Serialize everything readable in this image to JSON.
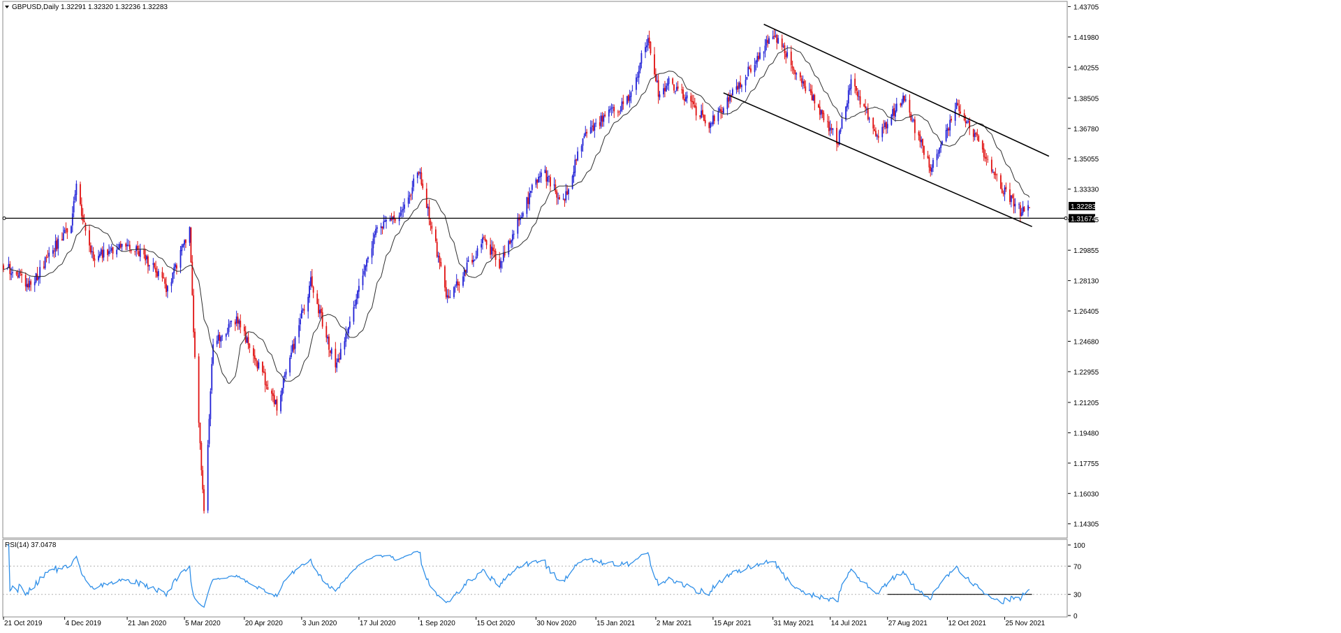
{
  "header": {
    "symbol_line": "GBPUSD,Daily  1.32291 1.32320 1.32236 1.32283"
  },
  "rsi_header": "RSI(14) 37.0478",
  "colors": {
    "bull": "#1f1fd6",
    "bear": "#e01010",
    "ma": "#303030",
    "rsi": "#2f8fe8",
    "line": "#000000",
    "price_label_bg": "#000000",
    "price_label_fg": "#ffffff"
  },
  "price_axis": {
    "ticks": [
      "1.43705",
      "1.41980",
      "1.40255",
      "1.38505",
      "1.36780",
      "1.35055",
      "1.33330",
      "1.31605",
      "1.29855",
      "1.28130",
      "1.26405",
      "1.24680",
      "1.22955",
      "1.21205",
      "1.19480",
      "1.17755",
      "1.16030",
      "1.14305"
    ],
    "current_price_label": "1.32283",
    "hline_label": "1.31674"
  },
  "rsi_axis": {
    "ticks": [
      "100",
      "70",
      "30",
      "0"
    ],
    "levels": [
      70,
      30
    ]
  },
  "time_axis": {
    "labels": [
      "21 Oct 2019",
      "4 Dec 2019",
      "21 Jan 2020",
      "5 Mar 2020",
      "20 Apr 2020",
      "3 Jun 2020",
      "17 Jul 2020",
      "1 Sep 2020",
      "15 Oct 2020",
      "30 Nov 2020",
      "15 Jan 2021",
      "2 Mar 2021",
      "15 Apr 2021",
      "31 May 2021",
      "14 Jul 2021",
      "27 Aug 2021",
      "12 Oct 2021",
      "25 Nov 2021"
    ]
  },
  "chart_data": {
    "type": "candlestick",
    "title": "GBPUSD,Daily",
    "last_bar": {
      "open": 1.32291,
      "high": 1.3232,
      "low": 1.32236,
      "close": 1.32283
    },
    "ylim": [
      1.135,
      1.44
    ],
    "x_range": [
      "2019-10-18",
      "2021-12-14"
    ],
    "key_points": [
      {
        "date": "2019-10-18",
        "close": 1.29
      },
      {
        "date": "2019-11-08",
        "close": 1.279
      },
      {
        "date": "2019-12-09",
        "close": 1.315
      },
      {
        "date": "2019-12-13",
        "close": 1.335
      },
      {
        "date": "2019-12-24",
        "close": 1.295
      },
      {
        "date": "2020-01-21",
        "close": 1.302
      },
      {
        "date": "2020-02-10",
        "close": 1.29
      },
      {
        "date": "2020-02-21",
        "close": 1.276
      },
      {
        "date": "2020-03-09",
        "close": 1.31
      },
      {
        "date": "2020-03-12",
        "close": 1.25
      },
      {
        "date": "2020-03-20",
        "close": 1.15
      },
      {
        "date": "2020-03-27",
        "close": 1.245
      },
      {
        "date": "2020-04-14",
        "close": 1.26
      },
      {
        "date": "2020-05-15",
        "close": 1.21
      },
      {
        "date": "2020-06-10",
        "close": 1.28
      },
      {
        "date": "2020-06-29",
        "close": 1.232
      },
      {
        "date": "2020-07-31",
        "close": 1.31
      },
      {
        "date": "2020-08-20",
        "close": 1.32
      },
      {
        "date": "2020-09-01",
        "close": 1.345
      },
      {
        "date": "2020-09-23",
        "close": 1.27
      },
      {
        "date": "2020-10-21",
        "close": 1.305
      },
      {
        "date": "2020-11-02",
        "close": 1.29
      },
      {
        "date": "2020-12-04",
        "close": 1.345
      },
      {
        "date": "2020-12-21",
        "close": 1.325
      },
      {
        "date": "2021-01-06",
        "close": 1.365
      },
      {
        "date": "2021-02-10",
        "close": 1.385
      },
      {
        "date": "2021-02-24",
        "close": 1.42
      },
      {
        "date": "2021-03-05",
        "close": 1.385
      },
      {
        "date": "2021-03-12",
        "close": 1.395
      },
      {
        "date": "2021-04-12",
        "close": 1.37
      },
      {
        "date": "2021-05-07",
        "close": 1.395
      },
      {
        "date": "2021-06-01",
        "close": 1.422
      },
      {
        "date": "2021-07-20",
        "close": 1.36
      },
      {
        "date": "2021-07-30",
        "close": 1.395
      },
      {
        "date": "2021-08-20",
        "close": 1.363
      },
      {
        "date": "2021-09-08",
        "close": 1.385
      },
      {
        "date": "2021-09-29",
        "close": 1.345
      },
      {
        "date": "2021-10-20",
        "close": 1.382
      },
      {
        "date": "2021-10-29",
        "close": 1.37
      },
      {
        "date": "2021-11-24",
        "close": 1.333
      },
      {
        "date": "2021-12-08",
        "close": 1.32
      },
      {
        "date": "2021-12-14",
        "close": 1.3228
      }
    ],
    "moving_average": {
      "visible": true,
      "color": "#303030"
    },
    "horizontal_line": 1.31674,
    "channel_upper": [
      {
        "date": "2021-05-24",
        "price": 1.427
      },
      {
        "date": "2021-12-29",
        "price": 1.352
      }
    ],
    "channel_lower": [
      {
        "date": "2021-04-23",
        "price": 1.388
      },
      {
        "date": "2021-12-16",
        "price": 1.312
      }
    ],
    "rsi": {
      "period": 14,
      "last": 37.0478,
      "ylim": [
        0,
        100
      ],
      "support_line": {
        "start": "2021-08-27",
        "end": "2021-12-16",
        "value": 30
      }
    }
  }
}
